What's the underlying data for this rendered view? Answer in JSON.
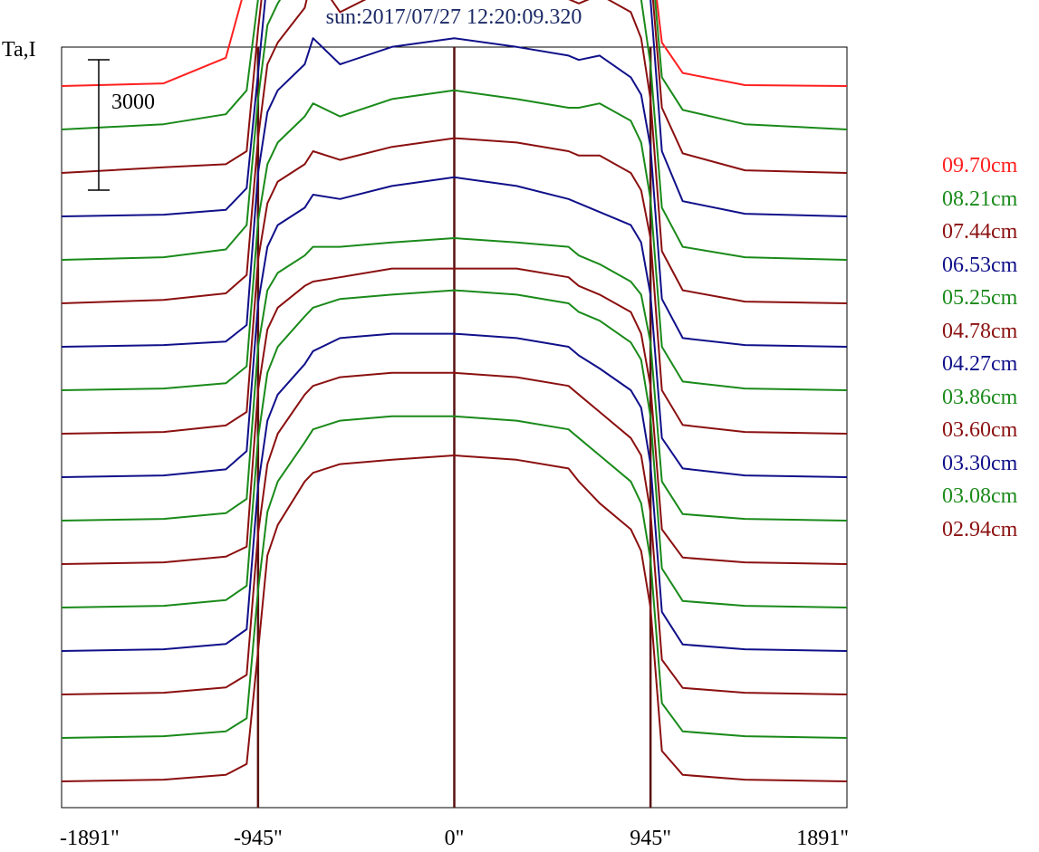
{
  "title": "sun:2017/07/27 12:20:09.320",
  "ylabel": "Ta,I",
  "scale_bar_label": "3000",
  "colors": {
    "red": "#ff2020",
    "green": "#1a8a1a",
    "maroon": "#8b1010",
    "navy": "#10108a",
    "marker": "#5a1010",
    "title": "#1c2a66"
  },
  "legend": [
    {
      "label": "09.70cm",
      "color": "#ff2020"
    },
    {
      "label": "08.21cm",
      "color": "#1a8a1a"
    },
    {
      "label": "07.44cm",
      "color": "#8b1010"
    },
    {
      "label": "06.53cm",
      "color": "#10108a"
    },
    {
      "label": "05.25cm",
      "color": "#1a8a1a"
    },
    {
      "label": "04.78cm",
      "color": "#8b1010"
    },
    {
      "label": "04.27cm",
      "color": "#10108a"
    },
    {
      "label": "03.86cm",
      "color": "#1a8a1a"
    },
    {
      "label": "03.60cm",
      "color": "#8b1010"
    },
    {
      "label": "03.30cm",
      "color": "#10108a"
    },
    {
      "label": "03.08cm",
      "color": "#1a8a1a"
    },
    {
      "label": "02.94cm",
      "color": "#8b1010"
    }
  ],
  "chart_data": {
    "type": "line",
    "title": "sun:2017/07/27 12:20:09.320",
    "ylabel": "Ta,I",
    "xlim": [
      -1891,
      1891
    ],
    "x_ticks": [
      {
        "value": -1891,
        "label": "-1891\""
      },
      {
        "value": -945,
        "label": "-945\""
      },
      {
        "value": 0,
        "label": "0\""
      },
      {
        "value": 945,
        "label": "945\""
      },
      {
        "value": 1891,
        "label": "1891\""
      }
    ],
    "vertical_markers": [
      -945,
      0,
      945
    ],
    "x": [
      -1891,
      -1400,
      -1100,
      -1000,
      -945,
      -900,
      -850,
      -720,
      -680,
      -550,
      -300,
      0,
      300,
      550,
      600,
      700,
      850,
      900,
      945,
      1000,
      1100,
      1400,
      1891
    ],
    "series": [
      {
        "name": "09.70cm",
        "color": "#ff2020",
        "offset": 11000,
        "values": [
          0,
          60,
          650,
          2400,
          4800,
          6000,
          6500,
          8200,
          10200,
          7800,
          8600,
          8800,
          8500,
          8000,
          8300,
          9300,
          7900,
          5800,
          3200,
          1000,
          300,
          20,
          0
        ]
      },
      {
        "name": "08.21cm",
        "color": "#1a8a1a",
        "offset": 10000,
        "values": [
          0,
          120,
          350,
          900,
          3000,
          5000,
          6200,
          7800,
          9600,
          7300,
          7800,
          8000,
          7700,
          7300,
          7500,
          8300,
          7100,
          6300,
          4200,
          1200,
          450,
          120,
          0
        ]
      },
      {
        "name": "07.44cm",
        "color": "#8b1010",
        "offset": 9000,
        "values": [
          0,
          130,
          200,
          500,
          3300,
          5200,
          6000,
          7300,
          9100,
          7300,
          7800,
          8200,
          7900,
          7500,
          7300,
          8000,
          7300,
          6500,
          4700,
          1500,
          450,
          60,
          0
        ]
      },
      {
        "name": "06.53cm",
        "color": "#10108a",
        "offset": 8000,
        "values": [
          0,
          40,
          150,
          650,
          3300,
          5500,
          6200,
          7000,
          8900,
          7200,
          7700,
          8100,
          7800,
          7400,
          7400,
          7900,
          7300,
          6700,
          5000,
          1500,
          350,
          60,
          0
        ]
      },
      {
        "name": "05.25cm",
        "color": "#1a8a1a",
        "offset": 7000,
        "values": [
          0,
          60,
          240,
          800,
          3700,
          5400,
          5900,
          6900,
          8300,
          6900,
          7300,
          7500,
          7200,
          6800,
          6900,
          7200,
          6700,
          6000,
          4500,
          1200,
          300,
          60,
          0
        ]
      },
      {
        "name": "04.78cm",
        "color": "#8b1010",
        "offset": 6000,
        "values": [
          0,
          80,
          230,
          650,
          3800,
          5500,
          6000,
          6800,
          7600,
          6700,
          7300,
          7700,
          7400,
          7000,
          6900,
          7100,
          6700,
          6100,
          4700,
          1200,
          300,
          40,
          0
        ]
      },
      {
        "name": "04.27cm",
        "color": "#10108a",
        "offset": 5000,
        "values": [
          0,
          40,
          120,
          500,
          4000,
          5400,
          5900,
          6500,
          7100,
          6500,
          6900,
          7100,
          6900,
          6700,
          6600,
          6700,
          6200,
          5800,
          4600,
          1100,
          200,
          40,
          0
        ]
      },
      {
        "name": "03.86cm",
        "color": "#1a8a1a",
        "offset": 4000,
        "values": [
          0,
          40,
          160,
          550,
          3900,
          5200,
          5700,
          6300,
          6600,
          6300,
          6700,
          6900,
          6700,
          6500,
          6500,
          6600,
          6200,
          5700,
          4400,
          1000,
          200,
          40,
          0
        ]
      },
      {
        "name": "03.60cm",
        "color": "#8b1010",
        "offset": 3000,
        "values": [
          0,
          40,
          190,
          500,
          4000,
          5300,
          5800,
          6200,
          6500,
          6300,
          6600,
          6800,
          6700,
          6500,
          6400,
          6400,
          6000,
          5600,
          4500,
          1000,
          200,
          40,
          0
        ]
      },
      {
        "name": "03.30cm",
        "color": "#10108a",
        "offset": 2000,
        "values": [
          0,
          40,
          180,
          600,
          4000,
          5300,
          5800,
          6200,
          6500,
          6400,
          6700,
          6900,
          6700,
          6400,
          6300,
          6100,
          5800,
          5400,
          4200,
          900,
          200,
          40,
          0
        ]
      },
      {
        "name": "03.08cm",
        "color": "#1a8a1a",
        "offset": 1000,
        "values": [
          0,
          40,
          170,
          500,
          4000,
          5300,
          5700,
          6100,
          6300,
          6300,
          6400,
          6500,
          6400,
          6300,
          6100,
          5900,
          5500,
          5200,
          4100,
          900,
          150,
          40,
          0
        ]
      },
      {
        "name": "02.94cm",
        "color": "#8b1010",
        "offset": 0,
        "values": [
          0,
          40,
          170,
          400,
          4000,
          5400,
          5900,
          6400,
          6500,
          6600,
          6800,
          6800,
          6800,
          6600,
          6400,
          6200,
          5800,
          5300,
          4100,
          800,
          150,
          40,
          0
        ]
      }
    ],
    "extra_traces": [
      {
        "color": "#1a8a1a",
        "offset": -1000,
        "values": [
          0,
          40,
          170,
          500,
          3900,
          5400,
          6000,
          6700,
          6900,
          7100,
          7200,
          7300,
          7200,
          7000,
          6800,
          6600,
          6100,
          5700,
          4400,
          900,
          150,
          40,
          0
        ]
      },
      {
        "color": "#10108a",
        "offset": -2000,
        "values": [
          0,
          40,
          160,
          500,
          3800,
          5300,
          5900,
          6600,
          6900,
          7200,
          7300,
          7300,
          7200,
          7000,
          6800,
          6500,
          6000,
          5600,
          4300,
          900,
          150,
          40,
          0
        ]
      },
      {
        "color": "#8b1010",
        "offset": -3000,
        "values": [
          0,
          40,
          160,
          450,
          3700,
          5300,
          6000,
          6900,
          7100,
          7300,
          7400,
          7400,
          7300,
          7100,
          6900,
          6500,
          5900,
          5500,
          4200,
          800,
          150,
          40,
          0
        ]
      },
      {
        "color": "#1a8a1a",
        "offset": -4000,
        "values": [
          0,
          40,
          150,
          450,
          3400,
          5200,
          5900,
          6800,
          7100,
          7300,
          7400,
          7400,
          7300,
          7100,
          6900,
          6500,
          5900,
          5400,
          4100,
          800,
          150,
          40,
          0
        ]
      },
      {
        "color": "#8b1010",
        "offset": -5000,
        "values": [
          0,
          40,
          150,
          400,
          3000,
          5200,
          5900,
          6900,
          7100,
          7300,
          7400,
          7500,
          7400,
          7200,
          6900,
          6400,
          5800,
          5300,
          4000,
          700,
          150,
          40,
          0
        ]
      }
    ],
    "scale_bar": {
      "value": 3000,
      "label": "3000"
    },
    "ylim": [
      -6000,
      22000
    ],
    "grid": false,
    "legend_position": "right"
  }
}
